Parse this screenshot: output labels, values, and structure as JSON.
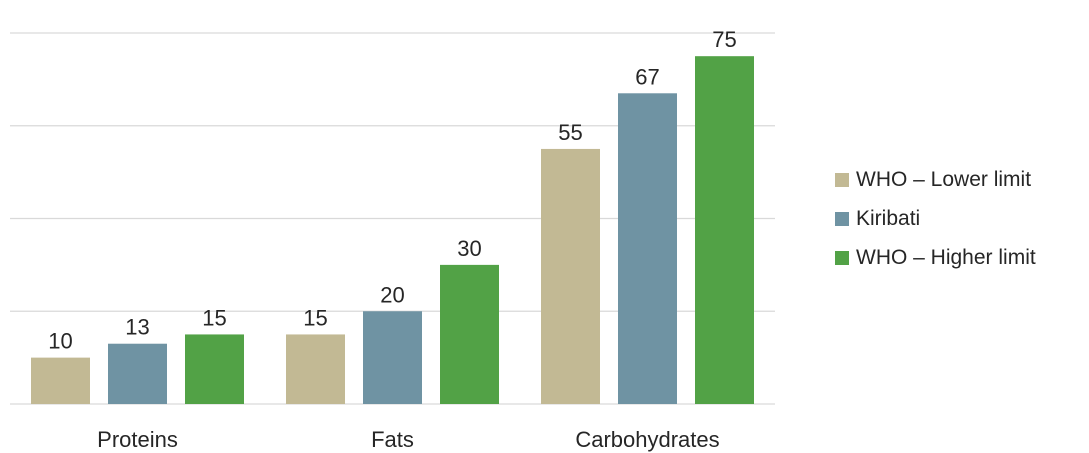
{
  "chart_data": {
    "type": "bar",
    "categories": [
      "Proteins",
      "Fats",
      "Carbohydrates"
    ],
    "series": [
      {
        "name": "WHO – Lower limit",
        "values": [
          10,
          15,
          55
        ],
        "color": "#c2b994"
      },
      {
        "name": "Kiribati",
        "values": [
          13,
          20,
          67
        ],
        "color": "#6f93a3"
      },
      {
        "name": "WHO – Higher limit",
        "values": [
          15,
          30,
          75
        ],
        "color": "#52a246"
      }
    ],
    "ylim": [
      0,
      80
    ],
    "yticks": [
      0,
      20,
      40,
      60,
      80
    ],
    "grid": true,
    "show_y_axis_labels": false,
    "data_labels": true,
    "legend_position": "right"
  }
}
